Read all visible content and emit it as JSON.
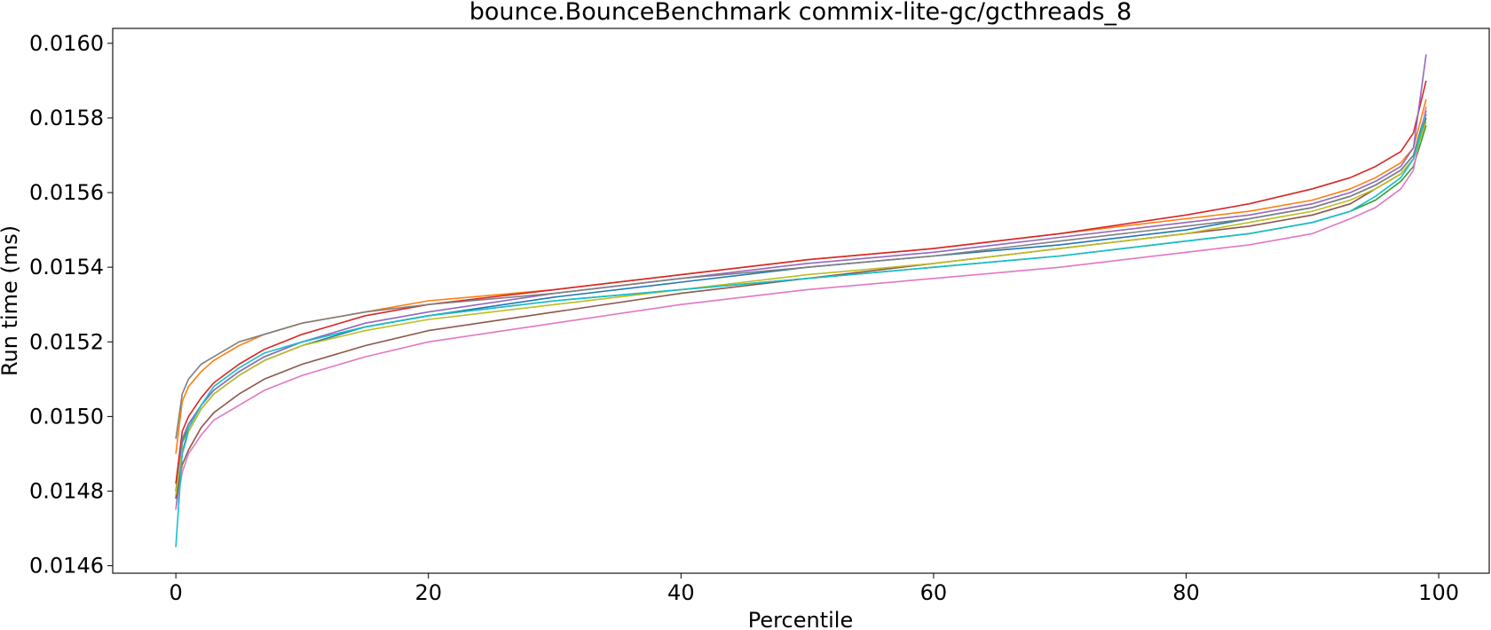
{
  "chart_data": {
    "type": "line",
    "title": "bounce.BounceBenchmark commix-lite-gc/gcthreads_8",
    "xlabel": "Percentile",
    "ylabel": "Run time (ms)",
    "xlim": [
      -5,
      104
    ],
    "ylim": [
      0.01458,
      0.01604
    ],
    "xticks": [
      0,
      20,
      40,
      60,
      80,
      100
    ],
    "xtick_labels": [
      "0",
      "20",
      "40",
      "60",
      "80",
      "100"
    ],
    "yticks": [
      0.0146,
      0.0148,
      0.015,
      0.0152,
      0.0154,
      0.0156,
      0.0158,
      0.016
    ],
    "ytick_labels": [
      "0.0146",
      "0.0148",
      "0.0150",
      "0.0152",
      "0.0154",
      "0.0156",
      "0.0158",
      "0.0160"
    ],
    "grid": false,
    "x": [
      0,
      0.5,
      1,
      2,
      3,
      5,
      7,
      10,
      15,
      20,
      30,
      40,
      50,
      60,
      70,
      80,
      85,
      90,
      93,
      95,
      97,
      98,
      99
    ],
    "series": [
      {
        "color": "#1f77b4",
        "values": [
          0.01475,
          0.0149,
          0.01496,
          0.01502,
          0.01506,
          0.01511,
          0.01515,
          0.01519,
          0.01524,
          0.01527,
          0.01532,
          0.01536,
          0.0154,
          0.01543,
          0.01546,
          0.0155,
          0.01553,
          0.01556,
          0.01559,
          0.01562,
          0.01566,
          0.0157,
          0.01582
        ]
      },
      {
        "color": "#ff7f0e",
        "values": [
          0.0149,
          0.01504,
          0.01508,
          0.01512,
          0.01515,
          0.01519,
          0.01522,
          0.01525,
          0.01528,
          0.01531,
          0.01534,
          0.01538,
          0.01542,
          0.01545,
          0.01549,
          0.01553,
          0.01555,
          0.01558,
          0.01561,
          0.01564,
          0.01568,
          0.01572,
          0.01585
        ]
      },
      {
        "color": "#2ca02c",
        "values": [
          0.0148,
          0.01493,
          0.01497,
          0.01503,
          0.01507,
          0.01512,
          0.01516,
          0.0152,
          0.01524,
          0.01527,
          0.01531,
          0.01534,
          0.01537,
          0.0154,
          0.01543,
          0.01547,
          0.01549,
          0.01552,
          0.01555,
          0.01558,
          0.01563,
          0.01567,
          0.01578
        ]
      },
      {
        "color": "#d62728",
        "values": [
          0.01482,
          0.01496,
          0.015,
          0.01505,
          0.01509,
          0.01514,
          0.01518,
          0.01522,
          0.01527,
          0.0153,
          0.01534,
          0.01538,
          0.01542,
          0.01545,
          0.01549,
          0.01554,
          0.01557,
          0.01561,
          0.01564,
          0.01567,
          0.01571,
          0.01576,
          0.0159
        ]
      },
      {
        "color": "#9467bd",
        "values": [
          0.01478,
          0.01494,
          0.01498,
          0.01503,
          0.01507,
          0.01512,
          0.01516,
          0.0152,
          0.01525,
          0.01528,
          0.01533,
          0.01537,
          0.01541,
          0.01544,
          0.01548,
          0.01552,
          0.01554,
          0.01557,
          0.0156,
          0.01563,
          0.01567,
          0.01572,
          0.01597
        ]
      },
      {
        "color": "#8c564b",
        "values": [
          0.01478,
          0.01487,
          0.01491,
          0.01497,
          0.01501,
          0.01506,
          0.0151,
          0.01514,
          0.01519,
          0.01523,
          0.01528,
          0.01533,
          0.01537,
          0.01541,
          0.01545,
          0.01549,
          0.01551,
          0.01554,
          0.01557,
          0.01561,
          0.01565,
          0.01569,
          0.0158
        ]
      },
      {
        "color": "#e377c2",
        "values": [
          0.01475,
          0.01485,
          0.0149,
          0.01495,
          0.01499,
          0.01503,
          0.01507,
          0.01511,
          0.01516,
          0.0152,
          0.01525,
          0.0153,
          0.01534,
          0.01537,
          0.0154,
          0.01544,
          0.01546,
          0.01549,
          0.01553,
          0.01556,
          0.01561,
          0.01566,
          0.01583
        ]
      },
      {
        "color": "#7f7f7f",
        "values": [
          0.01494,
          0.01506,
          0.0151,
          0.01514,
          0.01516,
          0.0152,
          0.01522,
          0.01525,
          0.01528,
          0.0153,
          0.01533,
          0.01537,
          0.0154,
          0.01543,
          0.01547,
          0.01551,
          0.01553,
          0.01556,
          0.01559,
          0.01562,
          0.01566,
          0.0157,
          0.01581
        ]
      },
      {
        "color": "#bcbd22",
        "values": [
          0.01479,
          0.01491,
          0.01496,
          0.01502,
          0.01506,
          0.01511,
          0.01515,
          0.01519,
          0.01523,
          0.01526,
          0.0153,
          0.01534,
          0.01538,
          0.01541,
          0.01545,
          0.01549,
          0.01552,
          0.01555,
          0.01558,
          0.01561,
          0.01565,
          0.01569,
          0.01579
        ]
      },
      {
        "color": "#17becf",
        "values": [
          0.01465,
          0.0149,
          0.01497,
          0.01503,
          0.01508,
          0.01513,
          0.01517,
          0.0152,
          0.01524,
          0.01527,
          0.01531,
          0.01534,
          0.01537,
          0.0154,
          0.01543,
          0.01547,
          0.01549,
          0.01552,
          0.01555,
          0.01559,
          0.01564,
          0.01569,
          0.01581
        ]
      }
    ]
  }
}
